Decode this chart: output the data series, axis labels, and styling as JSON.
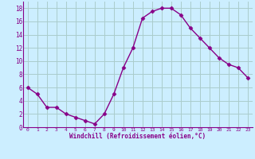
{
  "x": [
    0,
    1,
    2,
    3,
    4,
    5,
    6,
    7,
    8,
    9,
    10,
    11,
    12,
    13,
    14,
    15,
    16,
    17,
    18,
    19,
    20,
    21,
    22,
    23
  ],
  "y": [
    6,
    5,
    3,
    3,
    2,
    1.5,
    1,
    0.5,
    2,
    5,
    9,
    12,
    16.5,
    17.5,
    18,
    18,
    17,
    15,
    13.5,
    12,
    10.5,
    9.5,
    9,
    7.5
  ],
  "line_color": "#880088",
  "marker": "D",
  "marker_size": 2.5,
  "bg_color": "#cceeff",
  "grid_color": "#aacccc",
  "xlabel": "Windchill (Refroidissement éolien,°C)",
  "xlabel_color": "#880088",
  "tick_color": "#880088",
  "spine_color": "#880088",
  "ylim": [
    0,
    19
  ],
  "xlim": [
    -0.5,
    23.5
  ],
  "yticks": [
    0,
    2,
    4,
    6,
    8,
    10,
    12,
    14,
    16,
    18
  ],
  "xticks": [
    0,
    1,
    2,
    3,
    4,
    5,
    6,
    7,
    8,
    9,
    10,
    11,
    12,
    13,
    14,
    15,
    16,
    17,
    18,
    19,
    20,
    21,
    22,
    23
  ],
  "figsize": [
    3.2,
    2.0
  ],
  "dpi": 100
}
